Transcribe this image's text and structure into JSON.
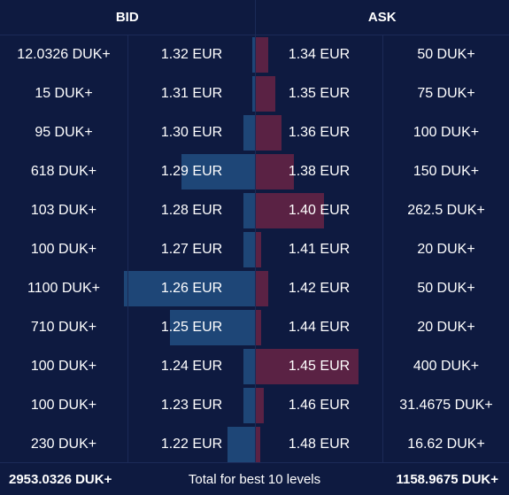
{
  "header": {
    "bid_label": "BID",
    "ask_label": "ASK"
  },
  "colors": {
    "background": "#0e1a40",
    "bid_bar": "#1e4677",
    "ask_bar": "#5a2244",
    "divider": "#1b2a57"
  },
  "rows": [
    {
      "bid_size": "12.0326 DUK+",
      "bid_price": "1.32 EUR",
      "ask_price": "1.34 EUR",
      "ask_size": "50 DUK+",
      "bid_depth": 0.01,
      "ask_depth": 0.12
    },
    {
      "bid_size": "15 DUK+",
      "bid_price": "1.31 EUR",
      "ask_price": "1.35 EUR",
      "ask_size": "75 DUK+",
      "bid_depth": 0.01,
      "ask_depth": 0.19
    },
    {
      "bid_size": "95 DUK+",
      "bid_price": "1.30 EUR",
      "ask_price": "1.36 EUR",
      "ask_size": "100 DUK+",
      "bid_depth": 0.09,
      "ask_depth": 0.25
    },
    {
      "bid_size": "618 DUK+",
      "bid_price": "1.29 EUR",
      "ask_price": "1.38 EUR",
      "ask_size": "150 DUK+",
      "bid_depth": 0.56,
      "ask_depth": 0.37
    },
    {
      "bid_size": "103 DUK+",
      "bid_price": "1.28 EUR",
      "ask_price": "1.40 EUR",
      "ask_size": "262.5 DUK+",
      "bid_depth": 0.09,
      "ask_depth": 0.66
    },
    {
      "bid_size": "100 DUK+",
      "bid_price": "1.27 EUR",
      "ask_price": "1.41 EUR",
      "ask_size": "20 DUK+",
      "bid_depth": 0.09,
      "ask_depth": 0.05
    },
    {
      "bid_size": "1100 DUK+",
      "bid_price": "1.26 EUR",
      "ask_price": "1.42 EUR",
      "ask_size": "50 DUK+",
      "bid_depth": 1.0,
      "ask_depth": 0.12
    },
    {
      "bid_size": "710 DUK+",
      "bid_price": "1.25 EUR",
      "ask_price": "1.44 EUR",
      "ask_size": "20 DUK+",
      "bid_depth": 0.65,
      "ask_depth": 0.05
    },
    {
      "bid_size": "100 DUK+",
      "bid_price": "1.24 EUR",
      "ask_price": "1.45 EUR",
      "ask_size": "400 DUK+",
      "bid_depth": 0.09,
      "ask_depth": 1.0
    },
    {
      "bid_size": "100 DUK+",
      "bid_price": "1.23 EUR",
      "ask_price": "1.46 EUR",
      "ask_size": "31.4675 DUK+",
      "bid_depth": 0.09,
      "ask_depth": 0.08
    },
    {
      "bid_size": "230 DUK+",
      "bid_price": "1.22 EUR",
      "ask_price": "1.48 EUR",
      "ask_size": "16.62 DUK+",
      "bid_depth": 0.21,
      "ask_depth": 0.04
    }
  ],
  "footer": {
    "bid_total": "2953.0326 DUK+",
    "label": "Total for best 10 levels",
    "ask_total": "1158.9675 DUK+"
  }
}
